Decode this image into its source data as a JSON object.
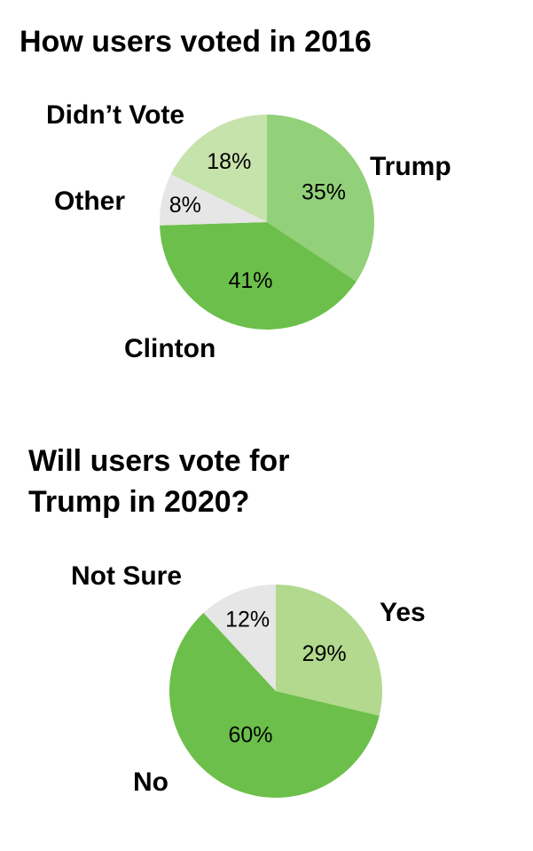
{
  "chart_data": [
    {
      "type": "pie",
      "title": "How users voted in 2016",
      "categories": [
        "Trump",
        "Clinton",
        "Other",
        "Didn’t Vote"
      ],
      "values": [
        35,
        41,
        8,
        18
      ],
      "value_labels": [
        "35%",
        "41%",
        "8%",
        "18%"
      ],
      "colors": [
        "#92d17a",
        "#6cbf4a",
        "#e6e6e6",
        "#c7e3ac"
      ]
    },
    {
      "type": "pie",
      "title": [
        "Will users vote for",
        "Trump in 2020?"
      ],
      "categories": [
        "Yes",
        "No",
        "Not Sure"
      ],
      "values": [
        29,
        60,
        12
      ],
      "value_labels": [
        "29%",
        "60%",
        "12%"
      ],
      "colors": [
        "#b2d98e",
        "#6cbf4a",
        "#e6e6e6"
      ]
    }
  ]
}
